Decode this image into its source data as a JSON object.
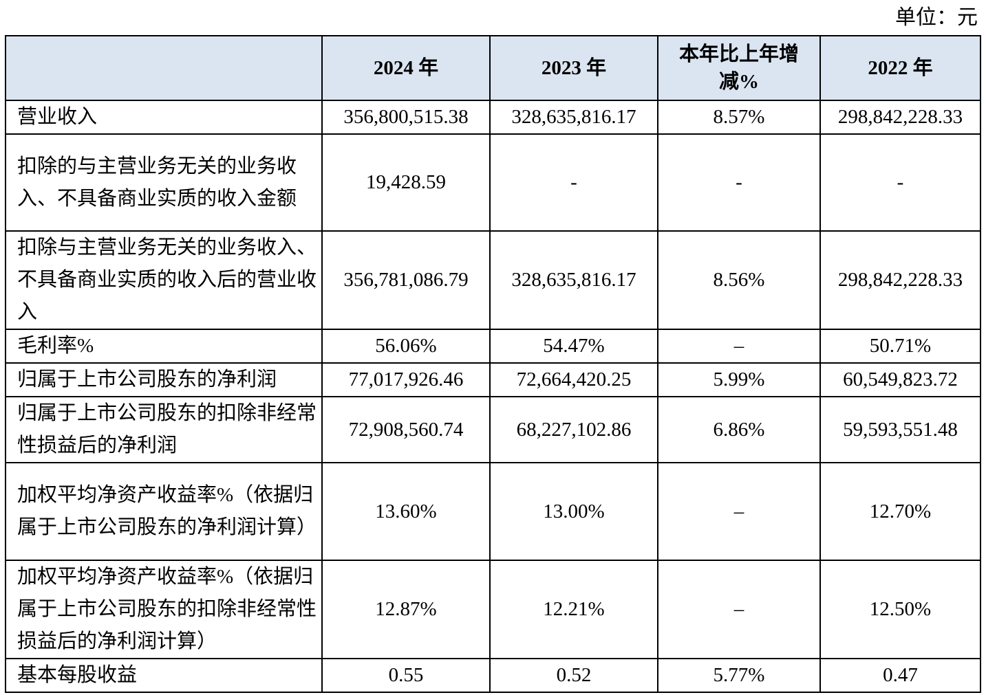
{
  "unit_label": "单位：元",
  "table": {
    "headers": {
      "label": "",
      "y2024": "2024 年",
      "y2023": "2023 年",
      "change": "本年比上年增减%",
      "y2022": "2022 年"
    },
    "rows": [
      {
        "label": "营业收入",
        "y2024": "356,800,515.38",
        "y2023": "328,635,816.17",
        "change": "8.57%",
        "y2022": "298,842,228.33"
      },
      {
        "label": "扣除的与主营业务无关的业务收入、不具备商业实质的收入金额",
        "y2024": "19,428.59",
        "y2023": "-",
        "change": "-",
        "y2022": "-"
      },
      {
        "label": "扣除与主营业务无关的业务收入、不具备商业实质的收入后的营业收入",
        "y2024": "356,781,086.79",
        "y2023": "328,635,816.17",
        "change": "8.56%",
        "y2022": "298,842,228.33"
      },
      {
        "label": "毛利率%",
        "y2024": "56.06%",
        "y2023": "54.47%",
        "change": "–",
        "y2022": "50.71%"
      },
      {
        "label": "归属于上市公司股东的净利润",
        "y2024": "77,017,926.46",
        "y2023": "72,664,420.25",
        "change": "5.99%",
        "y2022": "60,549,823.72"
      },
      {
        "label": "归属于上市公司股东的扣除非经常性损益后的净利润",
        "y2024": "72,908,560.74",
        "y2023": "68,227,102.86",
        "change": "6.86%",
        "y2022": "59,593,551.48"
      },
      {
        "label": "加权平均净资产收益率%（依据归属于上市公司股东的净利润计算）",
        "y2024": "13.60%",
        "y2023": "13.00%",
        "change": "–",
        "y2022": "12.70%"
      },
      {
        "label": "加权平均净资产收益率%（依据归属于上市公司股东的扣除非经常性损益后的净利润计算）",
        "y2024": "12.87%",
        "y2023": "12.21%",
        "change": "–",
        "y2022": "12.50%"
      },
      {
        "label": "基本每股收益",
        "y2024": "0.55",
        "y2023": "0.52",
        "change": "5.77%",
        "y2022": "0.47"
      }
    ]
  }
}
